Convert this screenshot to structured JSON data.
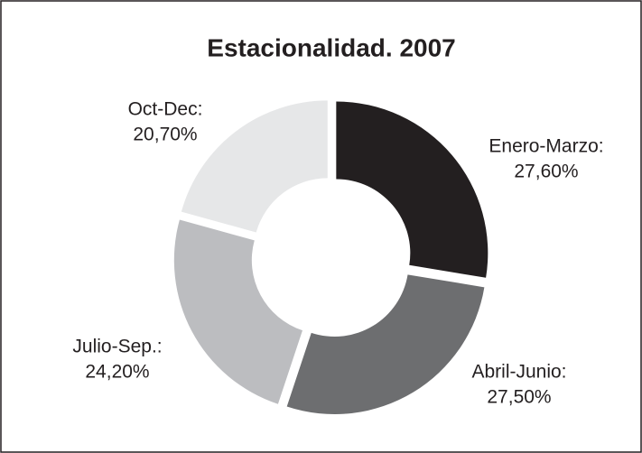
{
  "chart_data": {
    "type": "pie",
    "donut": true,
    "title": "Estacionalidad. 2007",
    "categories": [
      "Enero-Marzo:",
      "Abril-Junio:",
      "Julio-Sep.:",
      "Oct-Dec:"
    ],
    "values": [
      27.6,
      27.5,
      24.2,
      20.7
    ],
    "value_labels": [
      "27,60%",
      "27,50%",
      "24,20%",
      "20,70%"
    ],
    "colors": [
      "#231f20",
      "#6d6e70",
      "#bcbdc0",
      "#e6e7e8"
    ]
  }
}
